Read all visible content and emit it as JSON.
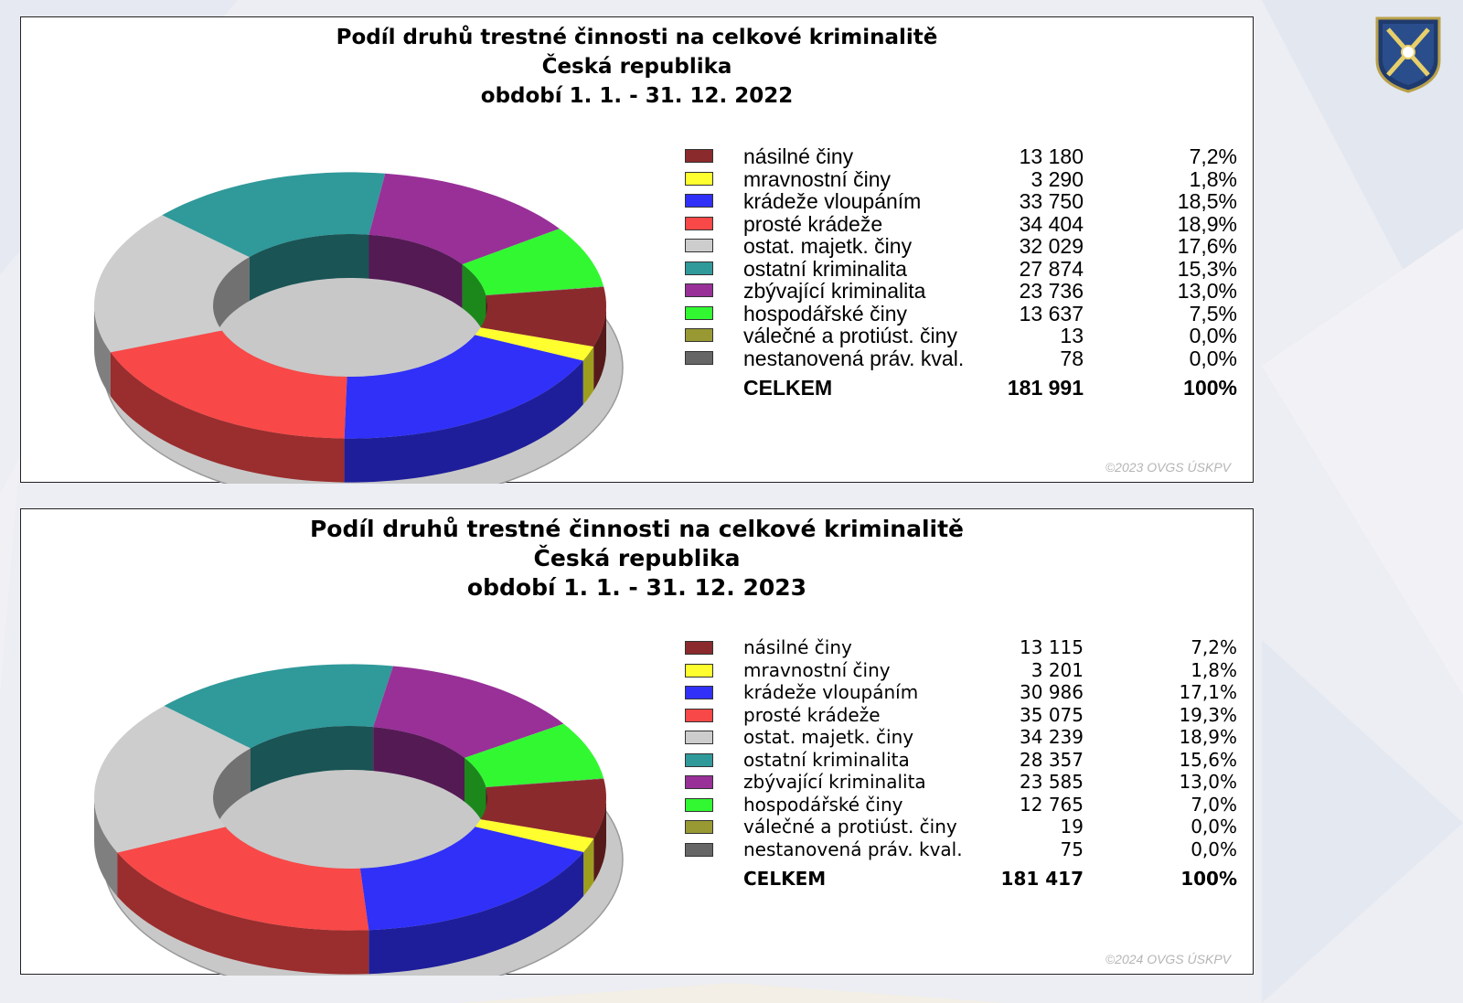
{
  "colors": {
    "nasilne": "#8b2a2c",
    "mravnostni": "#ffff30",
    "vloupanim": "#3030f8",
    "proste": "#f84848",
    "majetkove": "#cdcdcd",
    "ostatni": "#30999a",
    "zbyvajici": "#983098",
    "hospodarske": "#32f832",
    "valecne": "#999933",
    "nestanovena": "#666666"
  },
  "chart_data": [
    {
      "type": "pie",
      "title": "Podíl druhů trestné činnosti na celkové kriminalitě",
      "subtitle": "Česká republika",
      "period": "období 1. 1. - 31. 12. 2022",
      "categories": [
        "násilné činy",
        "mravnostní činy",
        "krádeže vloupáním",
        "prosté krádeže",
        "ostat. majetk. činy",
        "ostatní kriminalita",
        "zbývající kriminalita",
        "hospodářské činy",
        "válečné a protiúst. činy",
        "nestanovená práv. kval."
      ],
      "values": [
        13180,
        3290,
        33750,
        34404,
        32029,
        27874,
        23736,
        13637,
        13,
        78
      ],
      "value_labels": [
        "13 180",
        "3 290",
        "33 750",
        "34 404",
        "32 029",
        "27 874",
        "23 736",
        "13 637",
        "13",
        "78"
      ],
      "percent_labels": [
        "7,2%",
        "1,8%",
        "18,5%",
        "18,9%",
        "17,6%",
        "15,3%",
        "13,0%",
        "7,5%",
        "0,0%",
        "0,0%"
      ],
      "total_label": "CELKEM",
      "total_value": "181 991",
      "total_percent": "100%",
      "footer": "©2023 OVGS ÚSKPV",
      "chart_style": "3D donut"
    },
    {
      "type": "pie",
      "title": "Podíl druhů trestné činnosti na celkové kriminalitě",
      "subtitle": "Česká republika",
      "period": "období 1. 1. - 31. 12. 2023",
      "categories": [
        "násilné činy",
        "mravnostní činy",
        "krádeže vloupáním",
        "prosté krádeže",
        "ostat. majetk. činy",
        "ostatní kriminalita",
        "zbývající kriminalita",
        "hospodářské činy",
        "válečné a protiúst. činy",
        "nestanovená práv. kval."
      ],
      "values": [
        13115,
        3201,
        30986,
        35075,
        34239,
        28357,
        23585,
        12765,
        19,
        75
      ],
      "value_labels": [
        "13 115",
        "3 201",
        "30 986",
        "35 075",
        "34 239",
        "28 357",
        "23 585",
        "12 765",
        "19",
        "75"
      ],
      "percent_labels": [
        "7,2%",
        "1,8%",
        "17,1%",
        "19,3%",
        "18,9%",
        "15,6%",
        "13,0%",
        "7,0%",
        "0,0%",
        "0,0%"
      ],
      "total_label": "CELKEM",
      "total_value": "181 417",
      "total_percent": "100%",
      "footer": "©2024 OVGS ÚSKPV",
      "chart_style": "3D donut"
    }
  ],
  "logo": {
    "icon": "police-emblem-icon"
  }
}
